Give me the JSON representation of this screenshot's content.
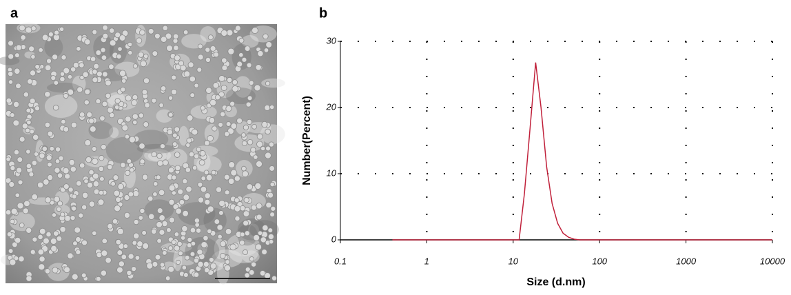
{
  "image_panel": {
    "label": "a"
  },
  "chart_data": {
    "type": "line",
    "panel_label": "b",
    "xlabel": "Size (d.nm)",
    "ylabel": "Number(Percent)",
    "xscale": "log",
    "xlim": [
      0.1,
      10000
    ],
    "xticks": [
      0.1,
      1,
      10,
      100,
      1000,
      10000
    ],
    "ylim": [
      0,
      30
    ],
    "yticks": [
      0,
      10,
      20,
      30
    ],
    "grid": true,
    "series": [
      {
        "color": "#c0203a",
        "x": [
          0.4,
          11.7,
          13.5,
          15.7,
          18.2,
          21.0,
          24.4,
          28.2,
          32.7,
          37.8,
          43.8,
          50.7,
          58.8,
          68.1,
          10000
        ],
        "values": [
          0,
          0,
          7,
          17,
          26.8,
          20,
          11,
          5.5,
          2.5,
          1.0,
          0.4,
          0.1,
          0,
          0,
          0
        ]
      }
    ]
  }
}
